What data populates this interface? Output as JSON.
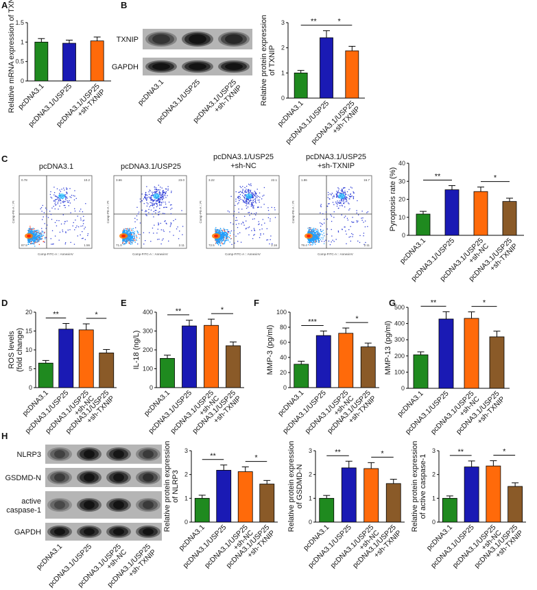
{
  "panel_letters": [
    "A",
    "B",
    "C",
    "D",
    "E",
    "F",
    "G",
    "H"
  ],
  "colors": {
    "green": "#1f8a1f",
    "blue": "#1a1ab4",
    "orange": "#ff6a0a",
    "brown": "#8a5a28"
  },
  "blot_B": {
    "rows": [
      "TXNIP",
      "GAPDH"
    ],
    "lanes": [
      "pcDNA3.1",
      "pcDNA3.1/USP25",
      "pcDNA3.1/USP25\n+sh-TXNIP"
    ]
  },
  "blot_H": {
    "rows": [
      "NLRP3",
      "GSDMD-N",
      "active\ncaspase-1",
      "GAPDH"
    ],
    "lanes": [
      "pcDNA3.1",
      "pcDNA3.1/USP25",
      "pcDNA3.1/USP25\n+sh-NC",
      "pcDNA3.1/USP25\n+sh-TXNIP"
    ]
  },
  "flow": {
    "x_axis_label": "Comp-FITC-A :: AnnexinV",
    "y_axis_label": "Comp-PE-A :: PI",
    "plots": [
      {
        "title": "pcDNA3.1",
        "q": [
          "0.78",
          "10.2",
          "87.5",
          "1.56"
        ]
      },
      {
        "title": "pcDNA3.1/USP25",
        "q": [
          "3.66",
          "23.0",
          "71.0",
          "2.11"
        ]
      },
      {
        "title": "pcDNA3.1/USP25\n+sh-NC",
        "q": [
          "3.22",
          "22.1",
          "72.5",
          "2.16"
        ]
      },
      {
        "title": "pcDNA3.1/USP25\n+sh-TXNIP",
        "q": [
          "1.86",
          "16.7",
          "79.4",
          "2.11"
        ]
      }
    ]
  },
  "chart_data": [
    {
      "id": "A",
      "type": "bar",
      "categories": [
        "pcDNA3.1",
        "pcDNA3.1/USP25",
        "pcDNA3.1/USP25\n+sh-TXNIP"
      ],
      "values": [
        1.0,
        0.97,
        1.03
      ],
      "errors": [
        0.09,
        0.08,
        0.1
      ],
      "colors": [
        "green",
        "blue",
        "orange"
      ],
      "ylabel": "Relative mRNA expression of TXNIP",
      "ylim": [
        0,
        1.5
      ],
      "yticks": [
        0,
        0.5,
        1.0,
        1.5
      ],
      "sig": []
    },
    {
      "id": "B",
      "type": "bar",
      "categories": [
        "pcDNA3.1",
        "pcDNA3.1/USP25",
        "pcDNA3.1/USP25\n+sh-TXNIP"
      ],
      "values": [
        1.0,
        2.4,
        1.88
      ],
      "errors": [
        0.1,
        0.28,
        0.18
      ],
      "colors": [
        "green",
        "blue",
        "orange"
      ],
      "ylabel": "Relative protein expression\nof TXNIP",
      "ylim": [
        0,
        3
      ],
      "yticks": [
        0,
        1,
        2,
        3
      ],
      "sig": [
        {
          "from": 0,
          "to": 1,
          "label": "**"
        },
        {
          "from": 1,
          "to": 2,
          "label": "*"
        }
      ]
    },
    {
      "id": "C",
      "type": "bar",
      "categories": [
        "pcDNA3.1",
        "pcDNA3.1/USP25",
        "pcDNA3.1/USP25\n+sh-NC",
        "pcDNA3.1/USP25\n+sh-TXNIP"
      ],
      "values": [
        11.8,
        25.3,
        24.3,
        18.8
      ],
      "errors": [
        1.5,
        2.3,
        2.5,
        1.8
      ],
      "colors": [
        "green",
        "blue",
        "orange",
        "brown"
      ],
      "ylabel": "Pyroptosis rate (%)",
      "ylim": [
        0,
        40
      ],
      "yticks": [
        0,
        10,
        20,
        30,
        40
      ],
      "sig": [
        {
          "from": 0,
          "to": 1,
          "label": "**"
        },
        {
          "from": 2,
          "to": 3,
          "label": "*"
        }
      ]
    },
    {
      "id": "D",
      "type": "bar",
      "categories": [
        "pcDNA3.1",
        "pcDNA3.1/USP25",
        "pcDNA3.1/USP25\n+sh-NC",
        "pcDNA3.1/USP25\n+sh-TXNIP"
      ],
      "values": [
        6.5,
        15.5,
        15.3,
        9.2
      ],
      "errors": [
        0.7,
        1.5,
        1.6,
        0.9
      ],
      "colors": [
        "green",
        "blue",
        "orange",
        "brown"
      ],
      "ylabel": "ROS levels\n(fold change)",
      "ylim": [
        0,
        20
      ],
      "yticks": [
        0,
        5,
        10,
        15,
        20
      ],
      "sig": [
        {
          "from": 0,
          "to": 1,
          "label": "**"
        },
        {
          "from": 2,
          "to": 3,
          "label": "*"
        }
      ]
    },
    {
      "id": "E",
      "type": "bar",
      "categories": [
        "pcDNA3.1",
        "pcDNA3.1/USP25",
        "pcDNA3.1/USP25\n+sh-NC",
        "pcDNA3.1/USP25\n+sh-TXNIP"
      ],
      "values": [
        155,
        327,
        330,
        222
      ],
      "errors": [
        17,
        30,
        33,
        20
      ],
      "colors": [
        "green",
        "blue",
        "orange",
        "brown"
      ],
      "ylabel": "IL-18 (ng/L)",
      "ylim": [
        0,
        400
      ],
      "yticks": [
        0,
        100,
        200,
        300,
        400
      ],
      "sig": [
        {
          "from": 0,
          "to": 1,
          "label": "**"
        },
        {
          "from": 2,
          "to": 3,
          "label": "*"
        }
      ]
    },
    {
      "id": "F",
      "type": "bar",
      "categories": [
        "pcDNA3.1",
        "pcDNA3.1/USP25",
        "pcDNA3.1/USP25\n+sh-NC",
        "pcDNA3.1/USP25\n+sh-TXNIP"
      ],
      "values": [
        31,
        69,
        72,
        54
      ],
      "errors": [
        4,
        6,
        7,
        5
      ],
      "colors": [
        "green",
        "blue",
        "orange",
        "brown"
      ],
      "ylabel": "MMP-3 (pg/ml)",
      "ylim": [
        0,
        100
      ],
      "yticks": [
        0,
        20,
        40,
        60,
        80,
        100
      ],
      "sig": [
        {
          "from": 0,
          "to": 1,
          "label": "***"
        },
        {
          "from": 2,
          "to": 3,
          "label": "*"
        }
      ]
    },
    {
      "id": "G",
      "type": "bar",
      "categories": [
        "pcDNA3.1",
        "pcDNA3.1/USP25",
        "pcDNA3.1/USP25\n+sh-NC",
        "pcDNA3.1/USP25\n+sh-TXNIP"
      ],
      "values": [
        207,
        428,
        432,
        318
      ],
      "errors": [
        18,
        45,
        40,
        35
      ],
      "colors": [
        "green",
        "blue",
        "orange",
        "brown"
      ],
      "ylabel": "MMP-13 (pg/ml)",
      "ylim": [
        0,
        500
      ],
      "yticks": [
        0,
        100,
        200,
        300,
        400,
        500
      ],
      "sig": [
        {
          "from": 0,
          "to": 1,
          "label": "**"
        },
        {
          "from": 2,
          "to": 3,
          "label": "*"
        }
      ]
    },
    {
      "id": "H1",
      "type": "bar",
      "categories": [
        "pcDNA3.1",
        "pcDNA3.1/USP25",
        "pcDNA3.1/USP25\n+sh-NC",
        "pcDNA3.1/USP25\n+sh-TXNIP"
      ],
      "values": [
        1.0,
        2.18,
        2.12,
        1.6
      ],
      "errors": [
        0.13,
        0.22,
        0.2,
        0.15
      ],
      "colors": [
        "green",
        "blue",
        "orange",
        "brown"
      ],
      "ylabel": "Relative protein expression\nof NLRP3",
      "ylim": [
        0,
        3
      ],
      "yticks": [
        0,
        1,
        2,
        3
      ],
      "sig": [
        {
          "from": 0,
          "to": 1,
          "label": "**"
        },
        {
          "from": 2,
          "to": 3,
          "label": "*"
        }
      ]
    },
    {
      "id": "H2",
      "type": "bar",
      "categories": [
        "pcDNA3.1",
        "pcDNA3.1/USP25",
        "pcDNA3.1/USP25\n+sh-NC",
        "pcDNA3.1/USP25\n+sh-TXNIP"
      ],
      "values": [
        1.0,
        2.28,
        2.25,
        1.62
      ],
      "errors": [
        0.12,
        0.28,
        0.25,
        0.18
      ],
      "colors": [
        "green",
        "blue",
        "orange",
        "brown"
      ],
      "ylabel": "Relative protein expression\nof GSDMD-N",
      "ylim": [
        0,
        3
      ],
      "yticks": [
        0,
        1,
        2,
        3
      ],
      "sig": [
        {
          "from": 0,
          "to": 1,
          "label": "**"
        },
        {
          "from": 2,
          "to": 3,
          "label": "*"
        }
      ]
    },
    {
      "id": "H3",
      "type": "bar",
      "categories": [
        "pcDNA3.1",
        "pcDNA3.1/USP25",
        "pcDNA3.1/USP25\n+sh-NC",
        "pcDNA3.1/USP25\n+sh-TXNIP"
      ],
      "values": [
        1.0,
        2.32,
        2.36,
        1.5
      ],
      "errors": [
        0.1,
        0.25,
        0.22,
        0.15
      ],
      "colors": [
        "green",
        "blue",
        "orange",
        "brown"
      ],
      "ylabel": "Relative protein expression\nof active caspase-1",
      "ylim": [
        0,
        3
      ],
      "yticks": [
        0,
        1,
        2,
        3
      ],
      "sig": [
        {
          "from": 0,
          "to": 1,
          "label": "**"
        },
        {
          "from": 2,
          "to": 3,
          "label": "*"
        }
      ]
    }
  ]
}
